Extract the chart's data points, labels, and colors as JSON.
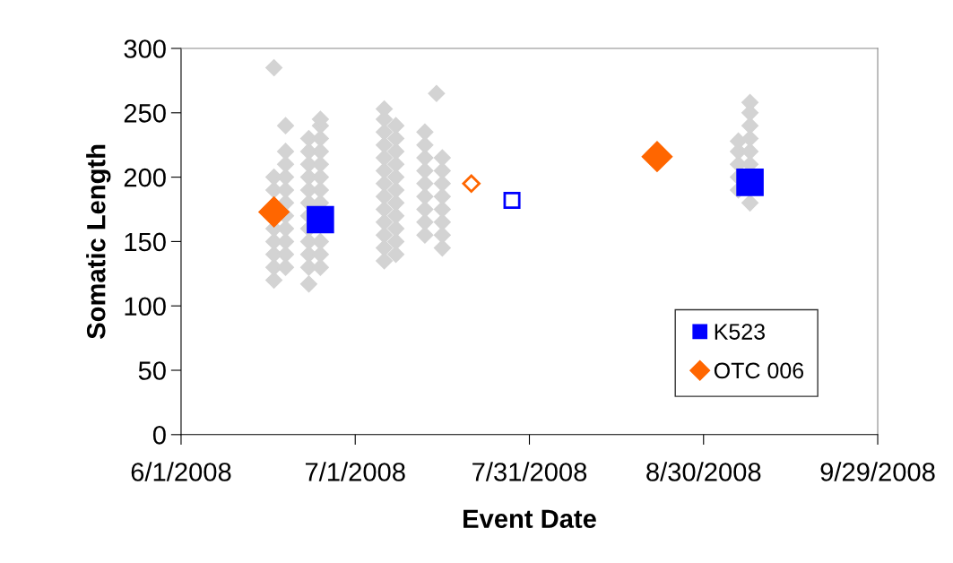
{
  "chart_data": {
    "type": "scatter",
    "xlabel": "Event Date",
    "ylabel": "Somatic Length",
    "xlim": [
      "2008-06-01",
      "2008-09-29"
    ],
    "xticks": [
      {
        "value": "2008-06-01",
        "label": "6/1/2008"
      },
      {
        "value": "2008-07-01",
        "label": "7/1/2008"
      },
      {
        "value": "2008-07-31",
        "label": "7/31/2008"
      },
      {
        "value": "2008-08-30",
        "label": "8/30/2008"
      },
      {
        "value": "2008-09-29",
        "label": "9/29/2008"
      }
    ],
    "ylim": [
      0,
      300
    ],
    "yticks": [
      0,
      50,
      100,
      150,
      200,
      250,
      300
    ],
    "grid": false,
    "legend": "bottom right",
    "series": [
      {
        "color": "#d3d3d3",
        "marker": "diamond",
        "x": [
          "2008-06-17",
          "2008-06-17",
          "2008-06-17",
          "2008-06-17",
          "2008-06-17",
          "2008-06-17",
          "2008-06-17",
          "2008-06-17",
          "2008-06-19",
          "2008-06-19",
          "2008-06-19",
          "2008-06-19",
          "2008-06-19",
          "2008-06-19",
          "2008-06-19",
          "2008-06-19",
          "2008-06-19",
          "2008-06-19",
          "2008-06-19",
          "2008-06-23",
          "2008-06-23",
          "2008-06-23",
          "2008-06-23",
          "2008-06-23",
          "2008-06-23",
          "2008-06-23",
          "2008-06-23",
          "2008-06-23",
          "2008-06-23",
          "2008-06-23",
          "2008-06-23",
          "2008-06-25",
          "2008-06-25",
          "2008-06-25",
          "2008-06-25",
          "2008-06-25",
          "2008-06-25",
          "2008-06-25",
          "2008-06-25",
          "2008-06-25",
          "2008-06-25",
          "2008-06-25",
          "2008-07-06",
          "2008-07-06",
          "2008-07-06",
          "2008-07-06",
          "2008-07-06",
          "2008-07-06",
          "2008-07-06",
          "2008-07-06",
          "2008-07-06",
          "2008-07-06",
          "2008-07-06",
          "2008-07-06",
          "2008-07-06",
          "2008-07-08",
          "2008-07-08",
          "2008-07-08",
          "2008-07-08",
          "2008-07-08",
          "2008-07-08",
          "2008-07-08",
          "2008-07-08",
          "2008-07-08",
          "2008-07-08",
          "2008-07-08",
          "2008-07-13",
          "2008-07-13",
          "2008-07-13",
          "2008-07-13",
          "2008-07-13",
          "2008-07-13",
          "2008-07-13",
          "2008-07-13",
          "2008-07-13",
          "2008-07-15",
          "2008-07-16",
          "2008-07-16",
          "2008-07-16",
          "2008-07-16",
          "2008-07-16",
          "2008-07-16",
          "2008-07-16",
          "2008-07-16",
          "2008-09-05",
          "2008-09-05",
          "2008-09-05",
          "2008-09-05",
          "2008-09-05",
          "2008-09-07",
          "2008-09-07",
          "2008-09-07",
          "2008-09-07",
          "2008-09-07",
          "2008-09-07",
          "2008-09-07"
        ],
        "values": [
          120,
          130,
          140,
          150,
          160,
          190,
          200,
          285,
          130,
          140,
          150,
          160,
          170,
          180,
          190,
          200,
          210,
          220,
          240,
          117,
          130,
          140,
          150,
          160,
          170,
          180,
          190,
          200,
          210,
          220,
          230,
          130,
          140,
          150,
          180,
          190,
          200,
          210,
          220,
          230,
          240,
          245,
          135,
          145,
          155,
          165,
          175,
          185,
          195,
          205,
          215,
          225,
          235,
          245,
          253,
          140,
          150,
          160,
          170,
          180,
          190,
          200,
          210,
          220,
          230,
          240,
          155,
          165,
          175,
          185,
          195,
          205,
          215,
          225,
          235,
          265,
          145,
          155,
          165,
          175,
          185,
          195,
          205,
          215,
          190,
          200,
          210,
          220,
          228,
          180,
          210,
          220,
          230,
          240,
          250,
          258
        ]
      },
      {
        "name": "K523",
        "color": "#0000ff",
        "marker": "square",
        "x": [
          "2008-06-25",
          "2008-09-07"
        ],
        "values": [
          167,
          196
        ]
      },
      {
        "name": "OTC 006",
        "color": "#ff6600",
        "marker": "diamond",
        "x": [
          "2008-06-17",
          "2008-08-22"
        ],
        "values": [
          173,
          216
        ]
      },
      {
        "color": "#0000ff",
        "marker": "square",
        "x": [
          "2008-07-28"
        ],
        "values": [
          182
        ]
      },
      {
        "color": "#ff6600",
        "marker": "diamond",
        "x": [
          "2008-07-21"
        ],
        "values": [
          195
        ]
      }
    ]
  }
}
